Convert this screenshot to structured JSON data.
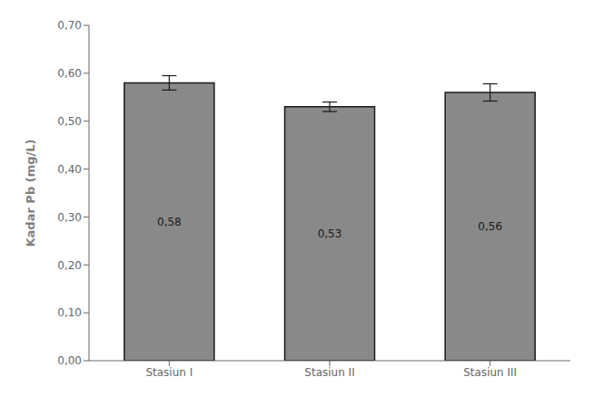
{
  "chart_data": {
    "type": "bar",
    "categories": [
      "Stasiun I",
      "Stasiun II",
      "Stasiun III"
    ],
    "values": [
      0.58,
      0.53,
      0.56
    ],
    "value_labels": [
      "0,58",
      "0,53",
      "0,56"
    ],
    "errors": [
      0.015,
      0.01,
      0.018
    ],
    "color": "#898989",
    "ylabel": "Kadar Pb (mg/L)",
    "ylim": [
      0.0,
      0.7
    ],
    "yticks": [
      {
        "value": 0.0,
        "label": "0,00"
      },
      {
        "value": 0.1,
        "label": "0,10"
      },
      {
        "value": 0.2,
        "label": "0,20"
      },
      {
        "value": 0.3,
        "label": "0,30"
      },
      {
        "value": 0.4,
        "label": "0,40"
      },
      {
        "value": 0.5,
        "label": "0,50"
      },
      {
        "value": 0.6,
        "label": "0,60"
      },
      {
        "value": 0.7,
        "label": "0,70"
      }
    ],
    "grid": false,
    "data_labels": true
  }
}
